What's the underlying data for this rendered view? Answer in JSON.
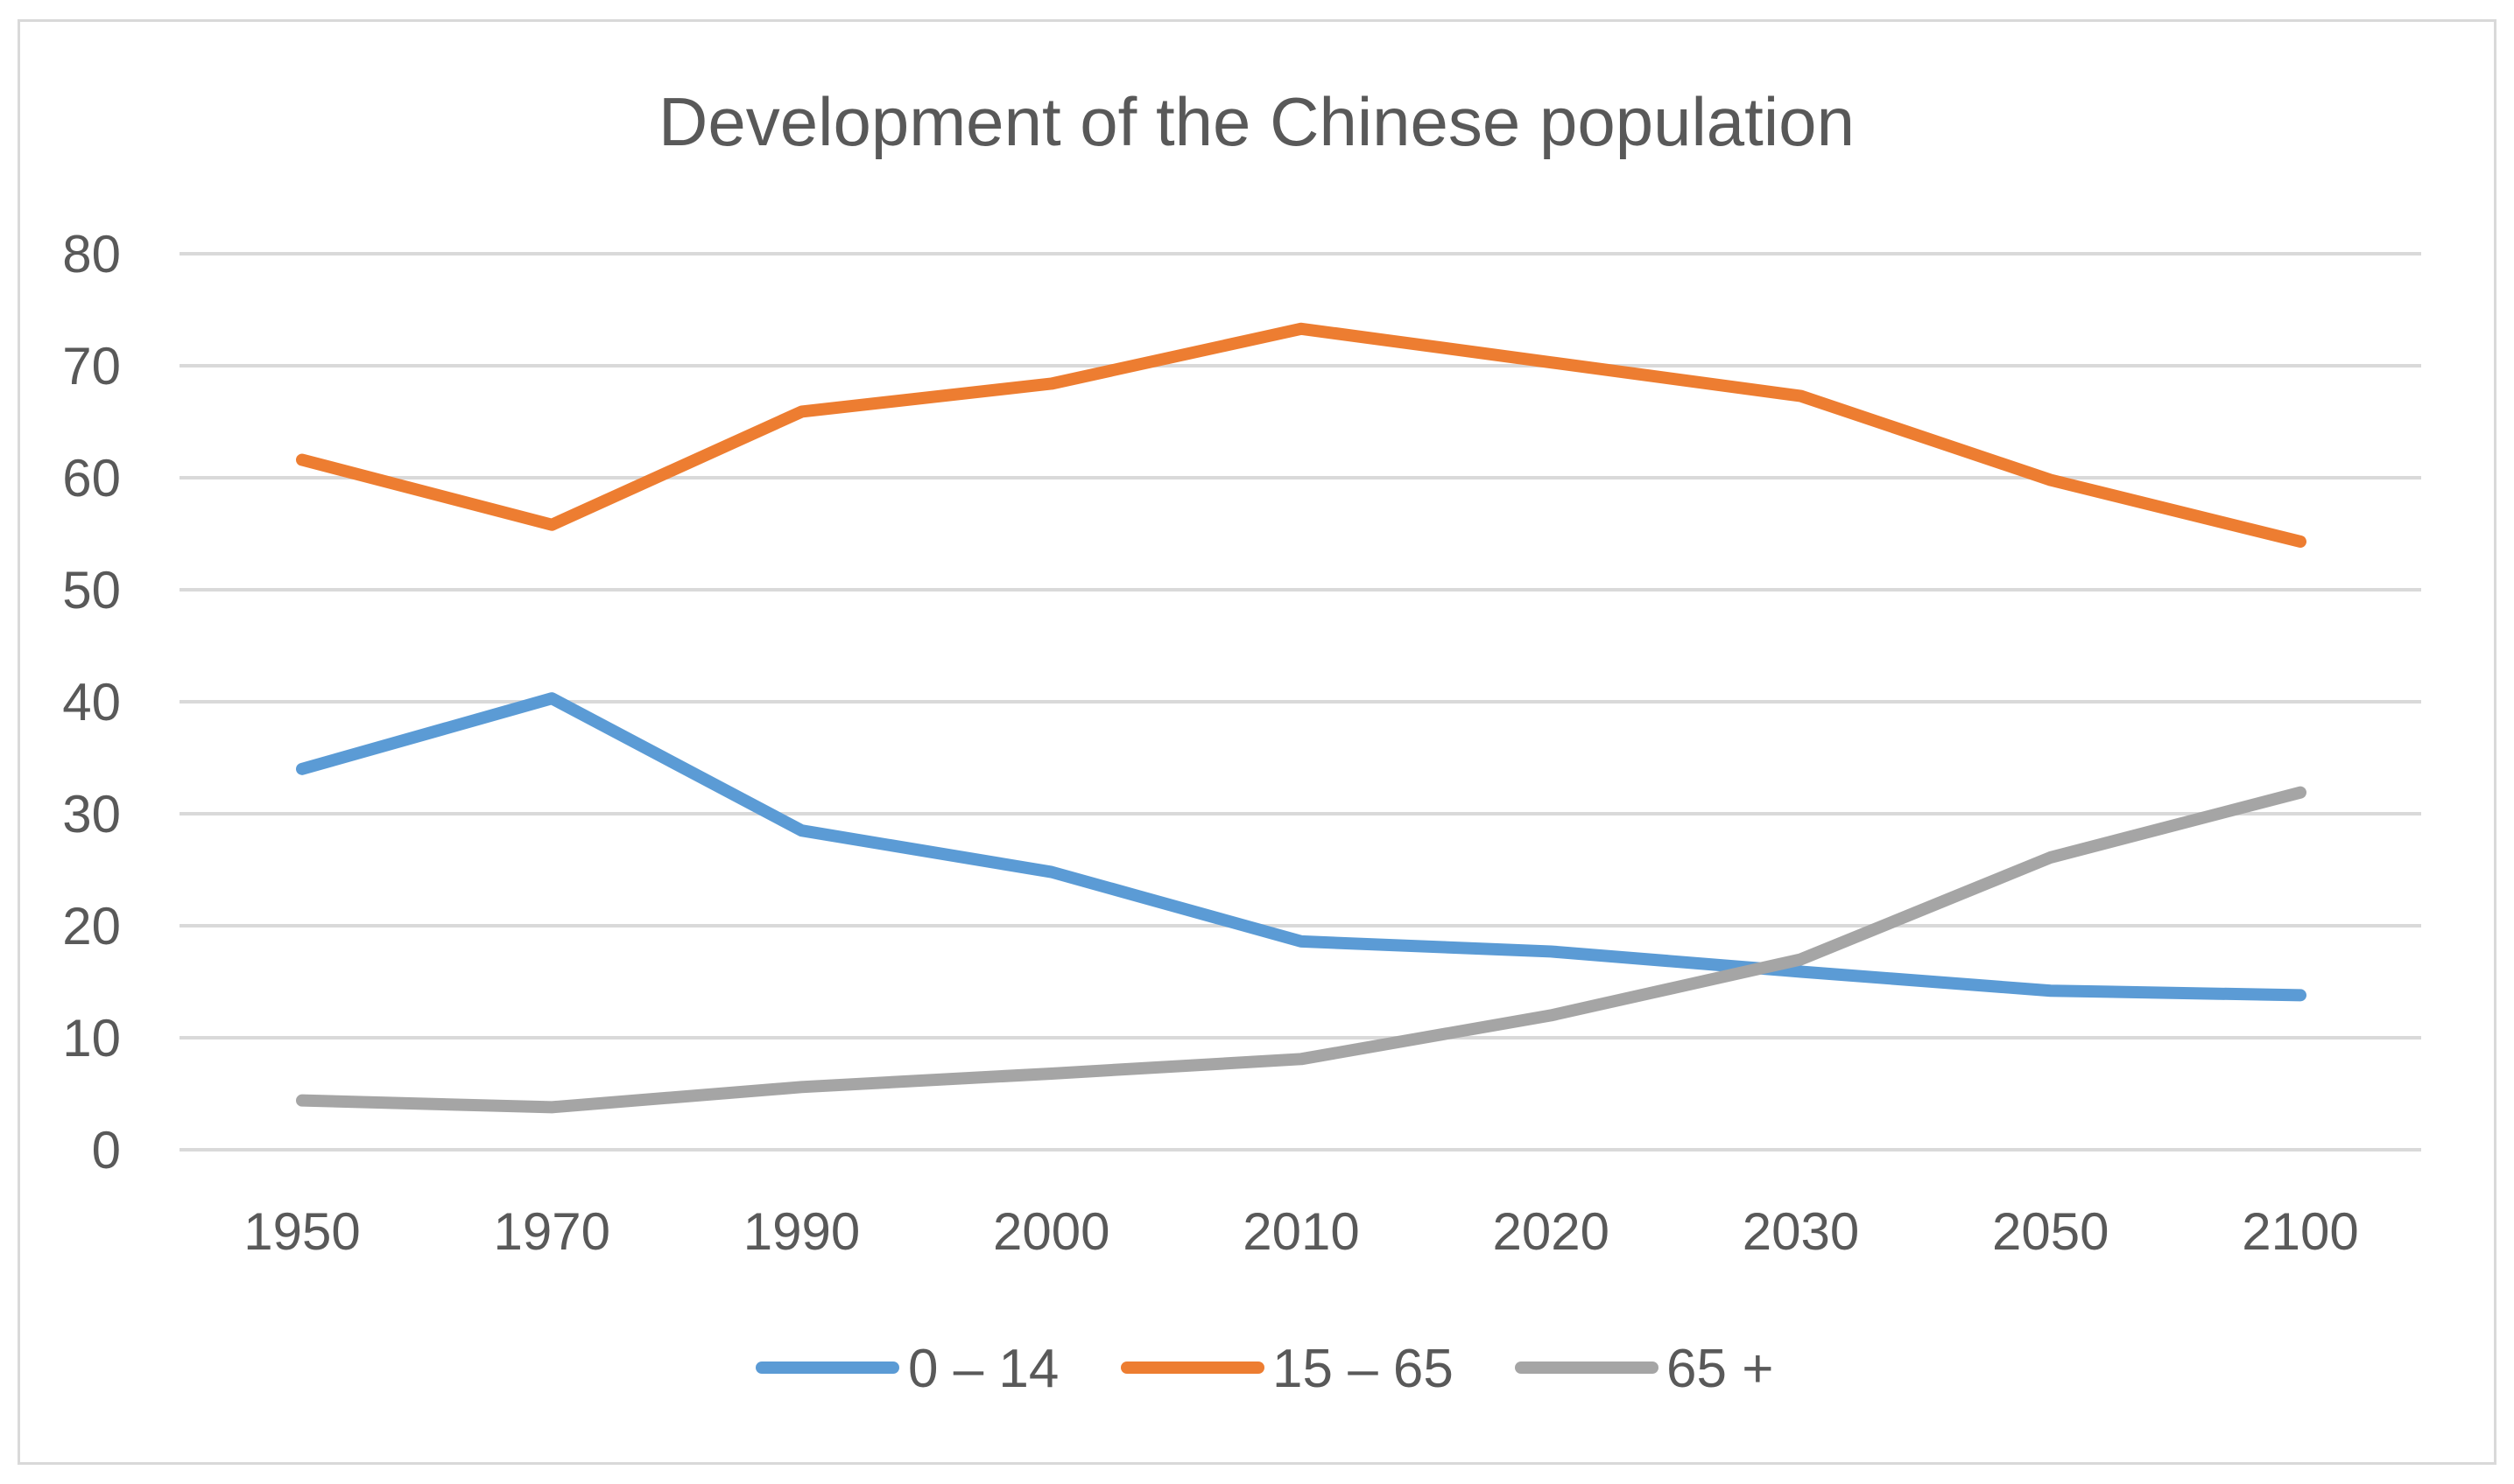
{
  "chart_data": {
    "type": "line",
    "title": "Development of the Chinese population",
    "xlabel": "",
    "ylabel": "",
    "categories": [
      "1950",
      "1970",
      "1990",
      "2000",
      "2010",
      "2020",
      "2030",
      "2050",
      "2100"
    ],
    "y_ticks": [
      "0",
      "10",
      "20",
      "30",
      "40",
      "50",
      "60",
      "70",
      "80"
    ],
    "ylim": [
      0,
      80
    ],
    "grid": "horizontal",
    "legend_position": "bottom",
    "series": [
      {
        "name": "0 – 14",
        "color": "#5b9bd5",
        "values": [
          34,
          40.3,
          28.5,
          24.8,
          18.6,
          17.7,
          15.9,
          14.2,
          13.8
        ]
      },
      {
        "name": "15 – 65",
        "color": "#ed7d31",
        "values": [
          61.6,
          55.8,
          65.9,
          68.4,
          73.3,
          70.3,
          67.3,
          59.8,
          54.3
        ]
      },
      {
        "name": "65 +",
        "color": "#a5a5a5",
        "values": [
          4.4,
          3.8,
          5.6,
          6.8,
          8.1,
          12,
          17,
          26.1,
          31.9
        ]
      }
    ]
  }
}
